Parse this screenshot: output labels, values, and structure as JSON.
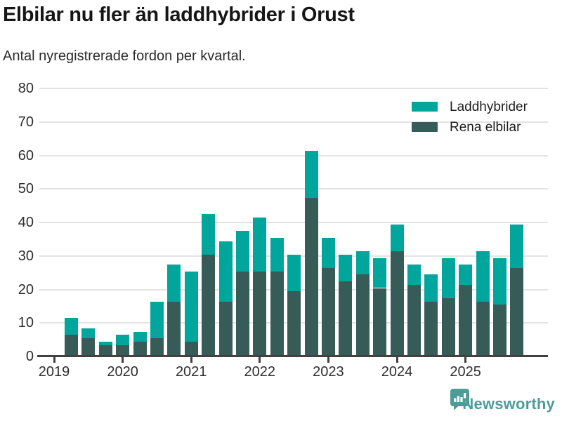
{
  "header": {
    "title": "Elbilar nu fler än laddhybrider i Orust",
    "subtitle": "Antal nyregistrerade fordon per kvartal."
  },
  "legend": {
    "items": [
      {
        "label": "Laddhybrider",
        "color": "#00a69c"
      },
      {
        "label": "Rena elbilar",
        "color": "#375c57"
      }
    ]
  },
  "footer": {
    "brand": "Newsworthy",
    "brand_color": "#4e9c99"
  },
  "colors": {
    "laddhybrider": "#00a69c",
    "rena_elbilar": "#375c57",
    "gridline": "#e3e3e3",
    "axis": "#414141",
    "title_text": "#161616"
  },
  "chart_data": {
    "type": "bar",
    "stacked": true,
    "title": "Elbilar nu fler än laddhybrider i Orust",
    "subtitle": "Antal nyregistrerade fordon per kvartal.",
    "xlabel": "",
    "ylabel": "",
    "ylim": [
      0,
      80
    ],
    "yticks": [
      0,
      10,
      20,
      30,
      40,
      50,
      60,
      70,
      80
    ],
    "grid": "horizontal",
    "legend_position": "top-right",
    "year_tick_labels": [
      "2019",
      "2020",
      "2021",
      "2022",
      "2023",
      "2024",
      "2025"
    ],
    "categories": [
      "2019 Q2",
      "2019 Q3",
      "2019 Q4",
      "2020 Q1",
      "2020 Q2",
      "2020 Q3",
      "2020 Q4",
      "2021 Q1",
      "2021 Q2",
      "2021 Q3",
      "2021 Q4",
      "2022 Q1",
      "2022 Q2",
      "2022 Q3",
      "2022 Q4",
      "2023 Q1",
      "2023 Q2",
      "2023 Q3",
      "2023 Q4",
      "2024 Q1",
      "2024 Q2",
      "2024 Q3",
      "2024 Q4",
      "2025 Q1",
      "2025 Q2",
      "2025 Q3",
      "2025 Q4"
    ],
    "first_bar_quarter_offset_from_first_tick": 1,
    "series": [
      {
        "name": "Rena elbilar",
        "color": "#375c57",
        "stack_position": "bottom",
        "values": [
          6,
          5,
          3,
          3,
          4,
          5,
          16,
          4,
          30,
          16,
          25,
          25,
          25,
          19,
          47,
          26,
          22,
          24,
          20,
          31,
          21,
          16,
          17,
          21,
          16,
          15,
          26
        ]
      },
      {
        "name": "Laddhybrider",
        "color": "#00a69c",
        "stack_position": "top",
        "values": [
          5,
          3,
          1,
          3,
          3,
          11,
          11,
          21,
          12,
          18,
          12,
          16,
          10,
          11,
          14,
          9,
          8,
          7,
          9,
          8,
          6,
          8,
          12,
          6,
          15,
          14,
          13
        ]
      }
    ],
    "totals": [
      11,
      8,
      4,
      6,
      7,
      16,
      27,
      25,
      42,
      34,
      37,
      41,
      35,
      30,
      61,
      35,
      30,
      31,
      29,
      39,
      27,
      24,
      29,
      27,
      31,
      29,
      39
    ]
  }
}
